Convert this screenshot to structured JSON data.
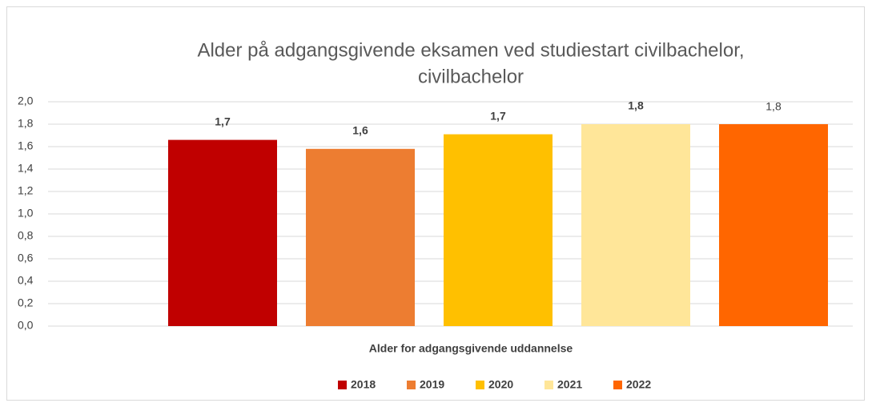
{
  "chart_data": {
    "type": "bar",
    "title": [
      "Alder på adgangsgivende eksamen ved studiestart  civilbachelor,",
      "civilbachelor"
    ],
    "categories": [
      "Alder for adgangsgivende uddannelse"
    ],
    "series": [
      {
        "name": "2018",
        "color": "#c00000",
        "values": [
          1.66
        ],
        "value_labels": [
          "1,7"
        ]
      },
      {
        "name": "2019",
        "color": "#ed7d31",
        "values": [
          1.58
        ],
        "value_labels": [
          "1,6"
        ]
      },
      {
        "name": "2020",
        "color": "#ffc000",
        "values": [
          1.71
        ],
        "value_labels": [
          "1,7"
        ]
      },
      {
        "name": "2021",
        "color": "#ffe699",
        "values": [
          1.8
        ],
        "value_labels": [
          "1,8"
        ]
      },
      {
        "name": "2022",
        "color": "#ff6600",
        "values": [
          1.8
        ],
        "value_labels": [
          "1,8"
        ]
      }
    ],
    "ylim": [
      0,
      2
    ],
    "yticks": [
      {
        "value": 0,
        "label": "0,0"
      },
      {
        "value": 0.2,
        "label": "0,2"
      },
      {
        "value": 0.4,
        "label": "0,4"
      },
      {
        "value": 0.6,
        "label": "0,6"
      },
      {
        "value": 0.8,
        "label": "0,8"
      },
      {
        "value": 1,
        "label": "1,0"
      },
      {
        "value": 1.2,
        "label": "1,2"
      },
      {
        "value": 1.4,
        "label": "1,4"
      },
      {
        "value": 1.6,
        "label": "1,6"
      },
      {
        "value": 1.8,
        "label": "1,8"
      },
      {
        "value": 2,
        "label": "2,0"
      }
    ],
    "grid": true,
    "legend": "bottom"
  }
}
